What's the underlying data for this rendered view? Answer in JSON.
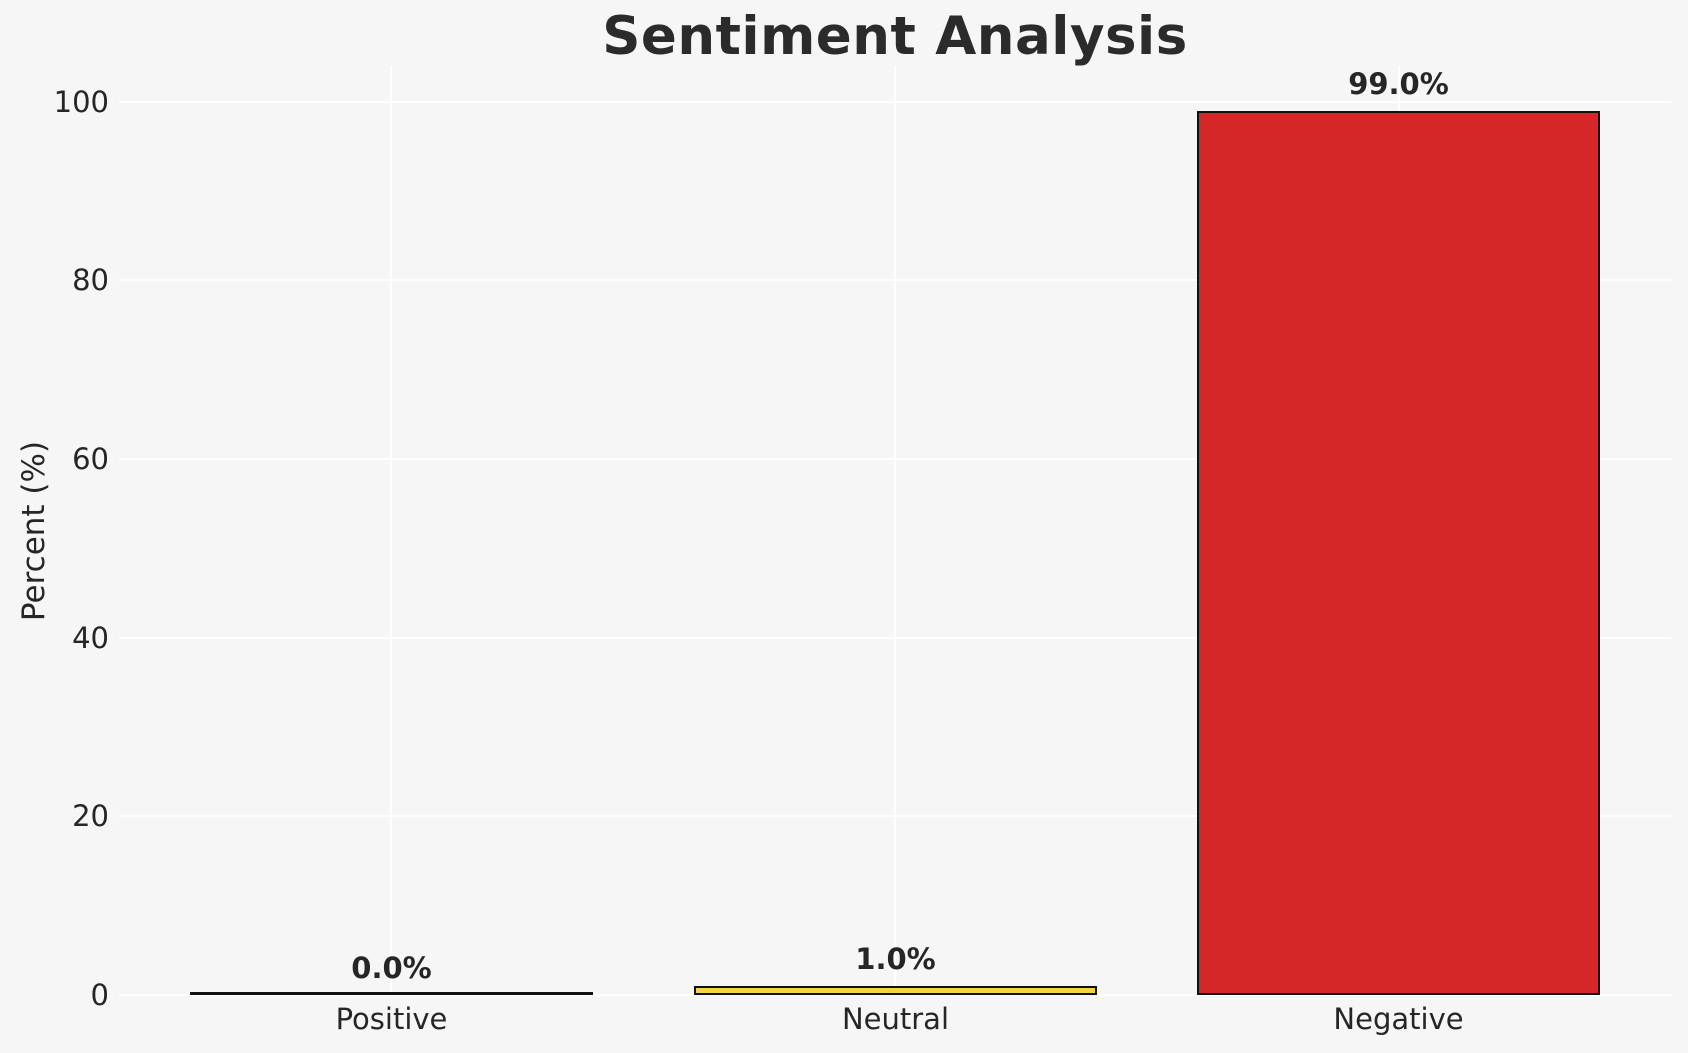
{
  "chart_data": {
    "type": "bar",
    "title": "Sentiment Analysis",
    "xlabel": "",
    "ylabel": "Percent (%)",
    "categories": [
      "Positive",
      "Neutral",
      "Negative"
    ],
    "values": [
      0.0,
      1.0,
      99.0
    ],
    "bar_value_labels": [
      "0.0%",
      "1.0%",
      "99.0%"
    ],
    "bar_colors": [
      null,
      "#f5d33c",
      "#d62728"
    ],
    "bar_edge_color": "#111111",
    "yticks": [
      0,
      20,
      40,
      60,
      80,
      100
    ],
    "ylim": [
      0,
      104
    ],
    "grid": true,
    "gridline_color": "#ffffff",
    "background_color": "#f6f6f6",
    "text_color": "#262626",
    "legend_position": "none"
  }
}
